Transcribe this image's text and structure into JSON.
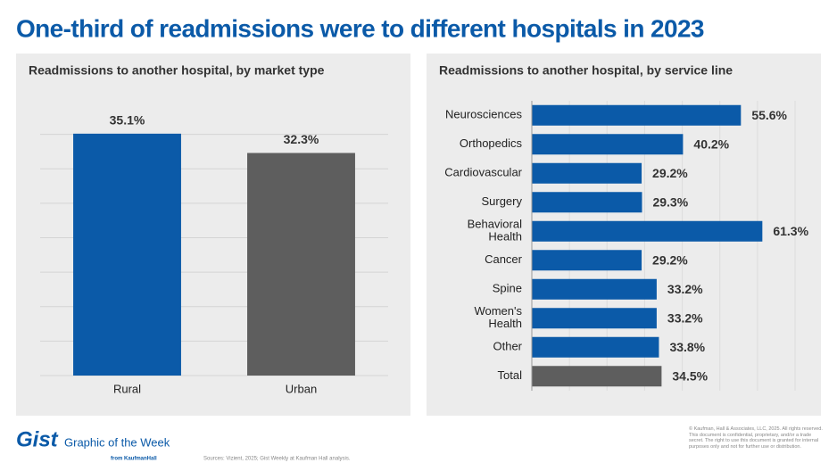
{
  "title": "One-third of readmissions were to different hospitals in 2023",
  "chart_data": [
    {
      "type": "bar",
      "title": "Readmissions to another hospital, by market type",
      "categories": [
        "Rural",
        "Urban"
      ],
      "values": [
        35.1,
        32.3
      ],
      "value_labels": [
        "35.1%",
        "32.3%"
      ],
      "colors": [
        "#0b5aa8",
        "#5e5e5e"
      ],
      "ylim": [
        0,
        40
      ],
      "yticks": [
        0,
        5,
        10,
        15,
        20,
        25,
        30,
        35
      ],
      "grid": true
    },
    {
      "type": "hbar",
      "title": "Readmissions to another hospital, by service line",
      "categories": [
        "Neurosciences",
        "Orthopedics",
        "Cardiovascular",
        "Surgery",
        "Behavioral Health",
        "Cancer",
        "Spine",
        "Women's Health",
        "Other",
        "Total"
      ],
      "values": [
        55.6,
        40.2,
        29.2,
        29.3,
        61.3,
        29.2,
        33.2,
        33.2,
        33.8,
        34.5
      ],
      "value_labels": [
        "55.6%",
        "40.2%",
        "29.2%",
        "29.3%",
        "61.3%",
        "29.2%",
        "33.2%",
        "33.2%",
        "33.8%",
        "34.5%"
      ],
      "colors": [
        "#0b5aa8",
        "#0b5aa8",
        "#0b5aa8",
        "#0b5aa8",
        "#0b5aa8",
        "#0b5aa8",
        "#0b5aa8",
        "#0b5aa8",
        "#0b5aa8",
        "#5e5e5e"
      ],
      "xlim": [
        0,
        70
      ],
      "xticks": [
        0,
        10,
        20,
        30,
        40,
        50,
        60,
        70
      ],
      "grid": true
    }
  ],
  "footer": {
    "brand": "Gist",
    "tagline": "Graphic of the Week",
    "from": "from KaufmanHall",
    "sources": "Sources: Vizient, 2025; Gist Weekly at Kaufman Hall analysis.",
    "copyright": "© Kaufman, Hall & Associates, LLC, 2025. All rights reserved. This document is confidential, proprietary, and/or a trade secret. The right to use this document is granted for internal purposes only and not for further use or distribution."
  }
}
